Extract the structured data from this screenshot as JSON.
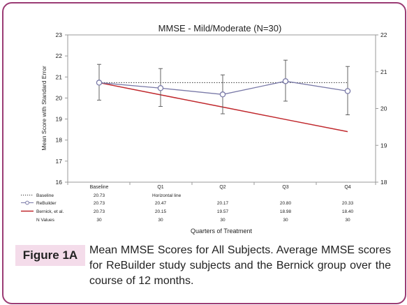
{
  "chart_data": {
    "type": "line",
    "title": "MMSE - Mild/Moderate (N=30)",
    "xlabel": "Quarters of Treatment",
    "ylabel": "Mean Score with Standard Error",
    "categories": [
      "Baseline",
      "Q1",
      "Q2",
      "Q3",
      "Q4"
    ],
    "ylim": [
      16,
      23
    ],
    "y_ticks": [
      "16",
      "17",
      "18",
      "19",
      "20",
      "21",
      "22",
      "23"
    ],
    "y2lim": [
      18,
      22
    ],
    "y2_ticks": [
      "18",
      "19",
      "20",
      "21",
      "22"
    ],
    "grid": false,
    "series": [
      {
        "name": "Baseline",
        "style": "dotted",
        "color": "#333333",
        "values": [
          20.73,
          null,
          null,
          null,
          20.73
        ],
        "table": [
          "20.73",
          "Horizontal line",
          "",
          "",
          ""
        ]
      },
      {
        "name": "ReBuilder",
        "style": "line-marker",
        "color": "#7a7aa8",
        "values": [
          20.73,
          20.47,
          20.17,
          20.8,
          20.33
        ],
        "error_low": [
          19.9,
          19.6,
          19.25,
          19.85,
          19.2
        ],
        "error_high": [
          21.6,
          21.4,
          21.1,
          21.8,
          21.5
        ],
        "table": [
          "20.73",
          "20.47",
          "20.17",
          "20.80",
          "20.33"
        ]
      },
      {
        "name": "Bernick, et al.",
        "style": "line",
        "color": "#c0282d",
        "values": [
          20.73,
          20.15,
          19.57,
          18.98,
          18.4
        ],
        "table": [
          "20.73",
          "20.15",
          "19.57",
          "18.98",
          "18.40"
        ]
      }
    ],
    "n_values": {
      "label": "N Values",
      "values": [
        "30",
        "30",
        "30",
        "30",
        "30"
      ]
    }
  },
  "caption": {
    "tag": "Figure 1A",
    "text": "Mean MMSE Scores for All Subjects. Average MMSE scores for ReBuilder study subjects and the Bernick group over the course of 12 months."
  },
  "colors": {
    "frame": "#9b3b74",
    "tag_bg": "#f4dcea"
  }
}
